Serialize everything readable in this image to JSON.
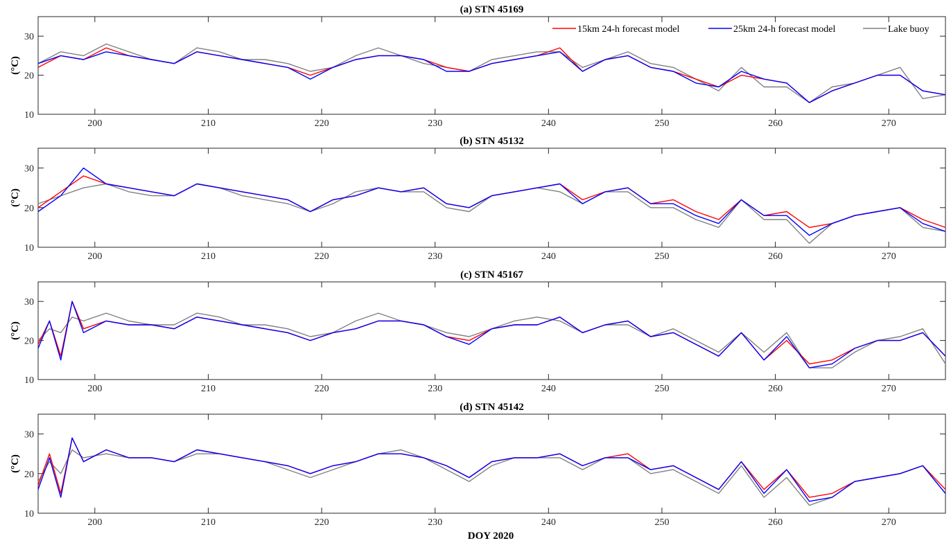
{
  "figure": {
    "xlabel": "DOY 2020",
    "ylabel": "(°C)"
  },
  "chart_data": [
    {
      "type": "line",
      "title": "(a) STN 45169",
      "xlabel": "",
      "ylabel": "(°C)",
      "xlim": [
        195,
        275
      ],
      "ylim": [
        10,
        35
      ],
      "xticks": [
        200,
        210,
        220,
        230,
        240,
        250,
        260,
        270
      ],
      "yticks": [
        10,
        20,
        30
      ],
      "legend": "top-right",
      "x": [
        195,
        197,
        199,
        201,
        203,
        205,
        207,
        209,
        211,
        213,
        215,
        217,
        219,
        221,
        223,
        225,
        227,
        229,
        231,
        233,
        235,
        237,
        239,
        241,
        243,
        245,
        247,
        249,
        251,
        253,
        255,
        257,
        259,
        261,
        263,
        265,
        267,
        269,
        271,
        273,
        275
      ],
      "series": [
        {
          "name": "15km 24-h forecast model",
          "color": "#ff0000",
          "values": [
            22,
            25,
            24,
            27,
            25,
            24,
            23,
            26,
            25,
            24,
            23,
            22,
            20,
            22,
            24,
            25,
            25,
            24,
            22,
            21,
            23,
            24,
            25,
            27,
            21,
            24,
            25,
            22,
            21,
            19,
            17,
            20,
            19,
            18,
            13,
            16,
            18,
            20,
            20,
            16,
            15
          ]
        },
        {
          "name": "25km 24-h forecast model",
          "color": "#0000ff",
          "values": [
            23,
            25,
            24,
            26,
            25,
            24,
            23,
            26,
            25,
            24,
            23,
            22,
            19,
            22,
            24,
            25,
            25,
            24,
            21,
            21,
            23,
            24,
            25,
            26,
            21,
            24,
            25,
            22,
            21,
            18,
            17,
            21,
            19,
            18,
            13,
            16,
            18,
            20,
            20,
            16,
            15
          ]
        },
        {
          "name": "Lake buoy",
          "color": "#808080",
          "values": [
            23,
            26,
            25,
            28,
            26,
            24,
            23,
            27,
            26,
            24,
            24,
            23,
            21,
            22,
            25,
            27,
            25,
            23,
            22,
            21,
            24,
            25,
            26,
            26,
            22,
            24,
            26,
            23,
            22,
            19,
            16,
            22,
            17,
            17,
            13,
            17,
            18,
            20,
            22,
            14,
            15
          ]
        }
      ]
    },
    {
      "type": "line",
      "title": "(b) STN 45132",
      "xlabel": "",
      "ylabel": "(°C)",
      "xlim": [
        195,
        275
      ],
      "ylim": [
        10,
        35
      ],
      "xticks": [
        200,
        210,
        220,
        230,
        240,
        250,
        260,
        270
      ],
      "yticks": [
        10,
        20,
        30
      ],
      "x": [
        195,
        197,
        199,
        201,
        203,
        205,
        207,
        209,
        211,
        213,
        215,
        217,
        219,
        221,
        223,
        225,
        227,
        229,
        231,
        233,
        235,
        237,
        239,
        241,
        243,
        245,
        247,
        249,
        251,
        253,
        255,
        257,
        259,
        261,
        263,
        265,
        267,
        269,
        271,
        273,
        275
      ],
      "series": [
        {
          "name": "15km 24-h forecast model",
          "color": "#ff0000",
          "values": [
            20,
            24,
            28,
            26,
            25,
            24,
            23,
            26,
            25,
            24,
            23,
            22,
            19,
            22,
            23,
            25,
            24,
            25,
            21,
            20,
            23,
            24,
            25,
            26,
            22,
            24,
            25,
            21,
            22,
            19,
            17,
            22,
            18,
            19,
            15,
            16,
            18,
            19,
            20,
            17,
            15
          ]
        },
        {
          "name": "25km 24-h forecast model",
          "color": "#0000ff",
          "values": [
            19,
            23,
            30,
            26,
            25,
            24,
            23,
            26,
            25,
            24,
            23,
            22,
            19,
            22,
            23,
            25,
            24,
            25,
            21,
            20,
            23,
            24,
            25,
            26,
            21,
            24,
            25,
            21,
            21,
            18,
            16,
            22,
            18,
            18,
            13,
            16,
            18,
            19,
            20,
            16,
            14
          ]
        },
        {
          "name": "Lake buoy",
          "color": "#808080",
          "values": [
            21,
            23,
            25,
            26,
            24,
            23,
            23,
            26,
            25,
            23,
            22,
            21,
            19,
            21,
            24,
            25,
            24,
            24,
            20,
            19,
            23,
            24,
            25,
            24,
            21,
            24,
            24,
            20,
            20,
            17,
            15,
            22,
            17,
            17,
            11,
            16,
            18,
            19,
            20,
            15,
            14
          ]
        }
      ]
    },
    {
      "type": "line",
      "title": "(c) STN 45167",
      "xlabel": "",
      "ylabel": "(°C)",
      "xlim": [
        195,
        275
      ],
      "ylim": [
        10,
        35
      ],
      "xticks": [
        200,
        210,
        220,
        230,
        240,
        250,
        260,
        270
      ],
      "yticks": [
        10,
        20,
        30
      ],
      "x": [
        195,
        196,
        197,
        198,
        199,
        201,
        203,
        205,
        207,
        209,
        211,
        213,
        215,
        217,
        219,
        221,
        223,
        225,
        227,
        229,
        231,
        233,
        235,
        237,
        239,
        241,
        243,
        245,
        247,
        249,
        251,
        253,
        255,
        257,
        259,
        261,
        263,
        265,
        267,
        269,
        271,
        273,
        275
      ],
      "series": [
        {
          "name": "15km 24-h forecast model",
          "color": "#ff0000",
          "values": [
            19,
            25,
            16,
            30,
            23,
            25,
            24,
            24,
            23,
            26,
            25,
            24,
            23,
            22,
            20,
            22,
            23,
            25,
            25,
            24,
            21,
            20,
            23,
            24,
            24,
            26,
            22,
            24,
            25,
            21,
            22,
            19,
            16,
            22,
            15,
            20,
            14,
            15,
            18,
            20,
            20,
            22,
            16
          ]
        },
        {
          "name": "25km 24-h forecast model",
          "color": "#0000ff",
          "values": [
            18,
            25,
            15,
            30,
            22,
            25,
            24,
            24,
            23,
            26,
            25,
            24,
            23,
            22,
            20,
            22,
            23,
            25,
            25,
            24,
            21,
            19,
            23,
            24,
            24,
            26,
            22,
            24,
            25,
            21,
            22,
            19,
            16,
            22,
            15,
            21,
            13,
            14,
            18,
            20,
            20,
            22,
            16
          ]
        },
        {
          "name": "Lake buoy",
          "color": "#808080",
          "values": [
            20,
            23,
            22,
            26,
            25,
            27,
            25,
            24,
            24,
            27,
            26,
            24,
            24,
            23,
            21,
            22,
            25,
            27,
            25,
            24,
            22,
            21,
            23,
            25,
            26,
            25,
            22,
            24,
            24,
            21,
            23,
            20,
            17,
            22,
            17,
            22,
            13,
            13,
            17,
            20,
            21,
            23,
            14
          ]
        }
      ]
    },
    {
      "type": "line",
      "title": "(d) STN 45142",
      "xlabel": "DOY 2020",
      "ylabel": "(°C)",
      "xlim": [
        195,
        275
      ],
      "ylim": [
        10,
        35
      ],
      "xticks": [
        200,
        210,
        220,
        230,
        240,
        250,
        260,
        270
      ],
      "yticks": [
        10,
        20,
        30
      ],
      "x": [
        195,
        196,
        197,
        198,
        199,
        201,
        203,
        205,
        207,
        209,
        211,
        213,
        215,
        217,
        219,
        221,
        223,
        225,
        227,
        229,
        231,
        233,
        235,
        237,
        239,
        241,
        243,
        245,
        247,
        249,
        251,
        253,
        255,
        257,
        259,
        261,
        263,
        265,
        267,
        269,
        271,
        273,
        275
      ],
      "series": [
        {
          "name": "15km 24-h forecast model",
          "color": "#ff0000",
          "values": [
            17,
            25,
            15,
            29,
            23,
            26,
            24,
            24,
            23,
            26,
            25,
            24,
            23,
            22,
            20,
            22,
            23,
            25,
            25,
            24,
            22,
            19,
            23,
            24,
            24,
            25,
            22,
            24,
            25,
            21,
            22,
            19,
            16,
            23,
            16,
            21,
            14,
            15,
            18,
            19,
            20,
            22,
            16
          ]
        },
        {
          "name": "25km 24-h forecast model",
          "color": "#0000ff",
          "values": [
            16,
            24,
            14,
            29,
            23,
            26,
            24,
            24,
            23,
            26,
            25,
            24,
            23,
            22,
            20,
            22,
            23,
            25,
            25,
            24,
            22,
            19,
            23,
            24,
            24,
            25,
            22,
            24,
            24,
            21,
            22,
            19,
            16,
            23,
            15,
            21,
            13,
            14,
            18,
            19,
            20,
            22,
            15
          ]
        },
        {
          "name": "Lake buoy",
          "color": "#808080",
          "values": [
            18,
            23,
            20,
            26,
            24,
            25,
            24,
            24,
            23,
            25,
            25,
            24,
            23,
            21,
            19,
            21,
            23,
            25,
            26,
            24,
            21,
            18,
            22,
            24,
            24,
            24,
            21,
            24,
            24,
            20,
            21,
            18,
            15,
            22,
            14,
            19,
            12,
            14,
            18,
            19,
            20,
            22,
            15
          ]
        }
      ]
    }
  ]
}
